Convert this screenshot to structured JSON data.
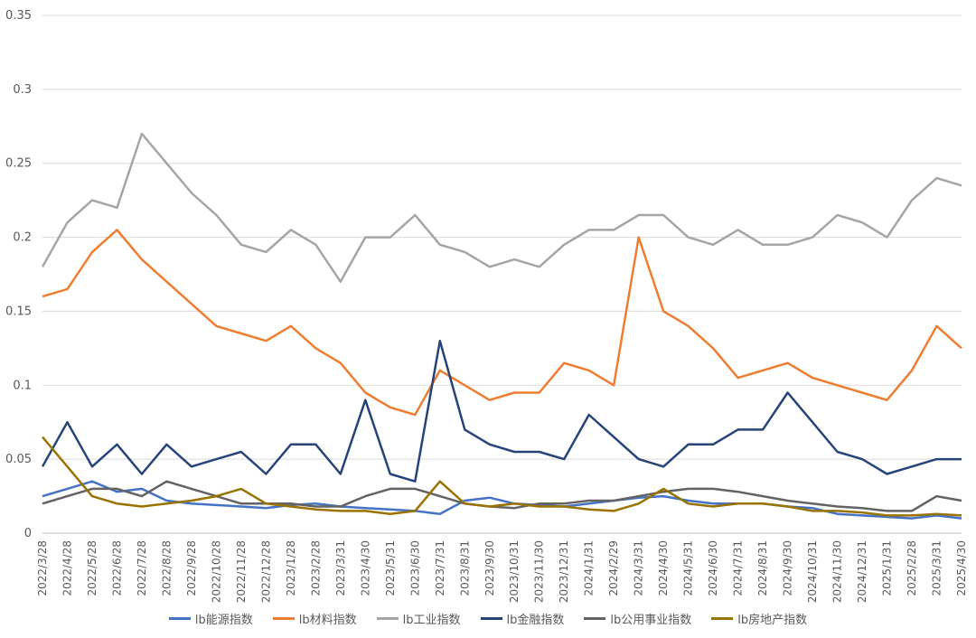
{
  "chart_data": {
    "type": "line",
    "title": "",
    "xlabel": "",
    "ylabel": "",
    "ylim": [
      0,
      0.35
    ],
    "yticks": [
      "0",
      "0.05",
      "0.1",
      "0.15",
      "0.2",
      "0.25",
      "0.3",
      "0.35"
    ],
    "grid": "horizontal",
    "legend_position": "bottom",
    "x": [
      "2022/3/28",
      "2022/4/28",
      "2022/5/28",
      "2022/6/28",
      "2022/7/28",
      "2022/8/28",
      "2022/9/28",
      "2022/10/28",
      "2022/11/28",
      "2022/12/28",
      "2023/1/28",
      "2023/2/28",
      "2023/3/31",
      "2023/4/30",
      "2023/5/31",
      "2023/6/30",
      "2023/7/31",
      "2023/8/31",
      "2023/9/30",
      "2023/10/31",
      "2023/11/30",
      "2023/12/31",
      "2024/1/31",
      "2024/2/29",
      "2024/3/31",
      "2024/4/30",
      "2024/5/31",
      "2024/6/30",
      "2024/7/31",
      "2024/8/31",
      "2024/9/30",
      "2024/10/31",
      "2024/11/30",
      "2024/12/31",
      "2025/1/31",
      "2025/2/28",
      "2025/3/31",
      "2025/4/30"
    ],
    "series": [
      {
        "name": "lb能源指数",
        "color": "#4472c4",
        "values": [
          0.025,
          0.03,
          0.035,
          0.028,
          0.03,
          0.022,
          0.02,
          0.019,
          0.018,
          0.017,
          0.019,
          0.02,
          0.018,
          0.017,
          0.016,
          0.015,
          0.013,
          0.022,
          0.024,
          0.02,
          0.019,
          0.018,
          0.02,
          0.022,
          0.024,
          0.025,
          0.022,
          0.02,
          0.02,
          0.02,
          0.018,
          0.017,
          0.013,
          0.012,
          0.011,
          0.01,
          0.012,
          0.01
        ]
      },
      {
        "name": "lb材料指数",
        "color": "#ed7d31",
        "values": [
          0.16,
          0.165,
          0.19,
          0.205,
          0.185,
          0.17,
          0.155,
          0.14,
          0.135,
          0.13,
          0.14,
          0.125,
          0.115,
          0.095,
          0.085,
          0.08,
          0.11,
          0.1,
          0.09,
          0.095,
          0.095,
          0.115,
          0.11,
          0.1,
          0.2,
          0.15,
          0.14,
          0.125,
          0.105,
          0.11,
          0.115,
          0.105,
          0.1,
          0.095,
          0.09,
          0.11,
          0.14,
          0.125
        ]
      },
      {
        "name": "lb工业指数",
        "color": "#a5a5a5",
        "values": [
          0.18,
          0.21,
          0.225,
          0.22,
          0.27,
          0.25,
          0.23,
          0.215,
          0.195,
          0.19,
          0.205,
          0.195,
          0.17,
          0.2,
          0.2,
          0.215,
          0.195,
          0.19,
          0.18,
          0.185,
          0.18,
          0.195,
          0.205,
          0.205,
          0.215,
          0.215,
          0.2,
          0.195,
          0.205,
          0.195,
          0.195,
          0.2,
          0.215,
          0.21,
          0.2,
          0.225,
          0.24,
          0.235
        ]
      },
      {
        "name": "lb金融指数",
        "color": "#264478",
        "values": [
          0.045,
          0.075,
          0.045,
          0.06,
          0.04,
          0.06,
          0.045,
          0.05,
          0.055,
          0.04,
          0.06,
          0.06,
          0.04,
          0.09,
          0.04,
          0.035,
          0.13,
          0.07,
          0.06,
          0.055,
          0.055,
          0.05,
          0.08,
          0.065,
          0.05,
          0.045,
          0.06,
          0.06,
          0.07,
          0.07,
          0.095,
          0.075,
          0.055,
          0.05,
          0.04,
          0.045,
          0.05,
          0.05
        ]
      },
      {
        "name": "lb公用事业指数",
        "color": "#636363",
        "values": [
          0.02,
          0.025,
          0.03,
          0.03,
          0.025,
          0.035,
          0.03,
          0.025,
          0.02,
          0.02,
          0.02,
          0.018,
          0.018,
          0.025,
          0.03,
          0.03,
          0.025,
          0.02,
          0.018,
          0.017,
          0.02,
          0.02,
          0.022,
          0.022,
          0.025,
          0.028,
          0.03,
          0.03,
          0.028,
          0.025,
          0.022,
          0.02,
          0.018,
          0.017,
          0.015,
          0.015,
          0.025,
          0.022
        ]
      },
      {
        "name": "lb房地产指数",
        "color": "#997300",
        "values": [
          0.065,
          0.045,
          0.025,
          0.02,
          0.018,
          0.02,
          0.022,
          0.025,
          0.03,
          0.02,
          0.018,
          0.016,
          0.015,
          0.015,
          0.013,
          0.015,
          0.035,
          0.02,
          0.018,
          0.02,
          0.018,
          0.018,
          0.016,
          0.015,
          0.02,
          0.03,
          0.02,
          0.018,
          0.02,
          0.02,
          0.018,
          0.015,
          0.015,
          0.014,
          0.012,
          0.012,
          0.013,
          0.012
        ]
      }
    ]
  }
}
